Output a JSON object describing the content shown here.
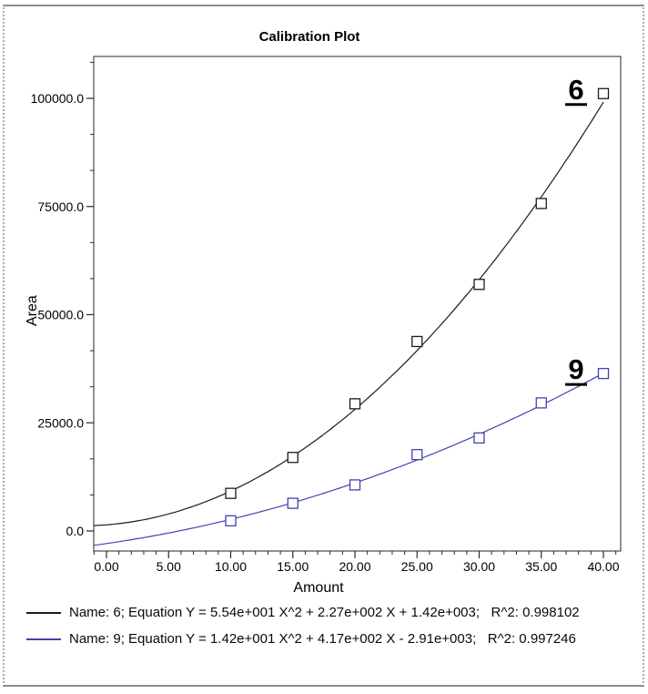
{
  "window": {
    "frame_style": "dotted-sides"
  },
  "chart_data": {
    "type": "scatter",
    "title": "Calibration Plot",
    "xlabel": "Amount",
    "ylabel": "Area",
    "xlim": [
      -1.0,
      41.4
    ],
    "ylim": [
      -4600,
      109700
    ],
    "grid": false,
    "x_major_ticks": [
      0,
      5,
      10,
      15,
      20,
      25,
      30,
      35,
      40
    ],
    "x_tick_labels": [
      "0.00",
      "5.00",
      "10.00",
      "15.00",
      "20.00",
      "25.00",
      "30.00",
      "35.00",
      "40.00"
    ],
    "x_minor_step": 1,
    "y_major_ticks": [
      0,
      25000,
      50000,
      75000,
      100000
    ],
    "y_tick_labels": [
      "0.0",
      "25000.0",
      "50000.0",
      "75000.0",
      "100000.0"
    ],
    "y_minor_per_major": 3,
    "series": [
      {
        "name": "6",
        "end_label": "6",
        "color": "#1c1c1c",
        "marker": "open-square",
        "fit_type": "quadratic",
        "fit": {
          "a": 55.4,
          "b": 227.0,
          "c": 1420.0
        },
        "points": [
          [
            10,
            8700
          ],
          [
            15,
            17000
          ],
          [
            20,
            29400
          ],
          [
            25,
            43800
          ],
          [
            30,
            57000
          ],
          [
            35,
            75700
          ],
          [
            40,
            101100
          ]
        ]
      },
      {
        "name": "9",
        "end_label": "9",
        "color": "#4343ae",
        "marker": "open-square",
        "fit_type": "quadratic",
        "fit": {
          "a": 14.2,
          "b": 417.0,
          "c": -2910.0
        },
        "points": [
          [
            10,
            2350
          ],
          [
            15,
            6400
          ],
          [
            20,
            10650
          ],
          [
            25,
            17650
          ],
          [
            30,
            21500
          ],
          [
            35,
            29600
          ],
          [
            40,
            36400
          ]
        ]
      }
    ],
    "legend": [
      {
        "color": "#1c1c1c",
        "label": "Name: 6; Equation Y = 5.54e+001 X^2 + 2.27e+002 X + 1.42e+003;   R^2: 0.998102"
      },
      {
        "color": "#4343ae",
        "label": "Name: 9; Equation Y = 1.42e+001 X^2 + 4.17e+002 X - 2.91e+003;   R^2: 0.997246"
      }
    ]
  }
}
